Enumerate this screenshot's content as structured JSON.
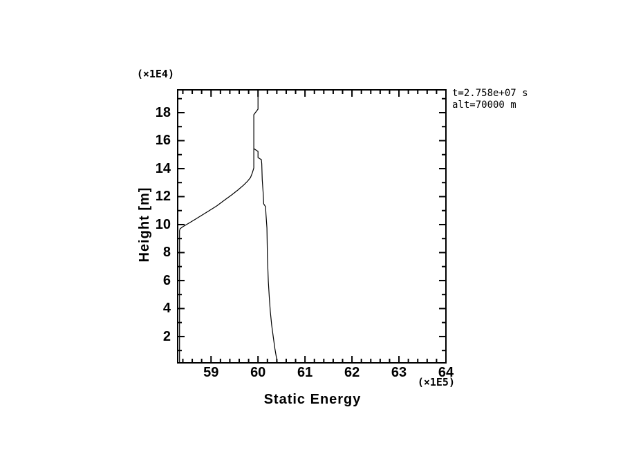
{
  "window": {
    "background": "#ffffff",
    "foreground": "#000000"
  },
  "chart_data": {
    "type": "line",
    "title": "",
    "xlabel": "Static Energy",
    "ylabel": "Height [m]",
    "x_unit_note": "(×1E5)",
    "y_unit_note": "(×1E4)",
    "annotation_lines": [
      "t=2.758e+07 s",
      "alt=70000 m"
    ],
    "xlim": [
      58.29,
      64.0
    ],
    "ylim": [
      0.12,
      19.63
    ],
    "x_major_ticks": [
      59,
      60,
      61,
      62,
      63,
      64
    ],
    "x_minor_tick_step": 0.2,
    "y_major_ticks": [
      2,
      4,
      6,
      8,
      10,
      12,
      14,
      16,
      18
    ],
    "y_minor_tick_step": 1,
    "grid": false,
    "legend": null,
    "line_color": "#000000",
    "frame_color": "#000000",
    "series": [
      {
        "name": "static-energy-profile-main",
        "points": [
          [
            60.0,
            19.63
          ],
          [
            60.0,
            18.25
          ],
          [
            59.91,
            17.85
          ],
          [
            59.91,
            14.05
          ],
          [
            59.88,
            13.7
          ],
          [
            59.84,
            13.36
          ],
          [
            59.78,
            13.11
          ],
          [
            59.69,
            12.81
          ],
          [
            59.57,
            12.47
          ],
          [
            59.44,
            12.12
          ],
          [
            59.28,
            11.73
          ],
          [
            59.12,
            11.33
          ],
          [
            58.96,
            10.99
          ],
          [
            58.79,
            10.64
          ],
          [
            58.65,
            10.35
          ],
          [
            58.5,
            10.05
          ],
          [
            58.4,
            9.85
          ],
          [
            58.34,
            9.7
          ],
          [
            58.33,
            9.56
          ],
          [
            58.33,
            0.12
          ]
        ]
      },
      {
        "name": "static-energy-profile-right-branch",
        "points": [
          [
            59.91,
            15.43
          ],
          [
            60.0,
            15.23
          ],
          [
            60.0,
            14.79
          ],
          [
            60.07,
            14.64
          ],
          [
            60.08,
            14.35
          ],
          [
            60.09,
            13.21
          ],
          [
            60.11,
            12.22
          ],
          [
            60.12,
            11.48
          ],
          [
            60.16,
            11.28
          ],
          [
            60.17,
            10.74
          ],
          [
            60.19,
            9.75
          ],
          [
            60.2,
            7.68
          ],
          [
            60.22,
            5.95
          ],
          [
            60.24,
            4.81
          ],
          [
            60.26,
            3.83
          ],
          [
            60.29,
            2.84
          ],
          [
            60.33,
            1.85
          ],
          [
            60.36,
            1.11
          ],
          [
            60.41,
            0.12
          ]
        ]
      }
    ]
  }
}
